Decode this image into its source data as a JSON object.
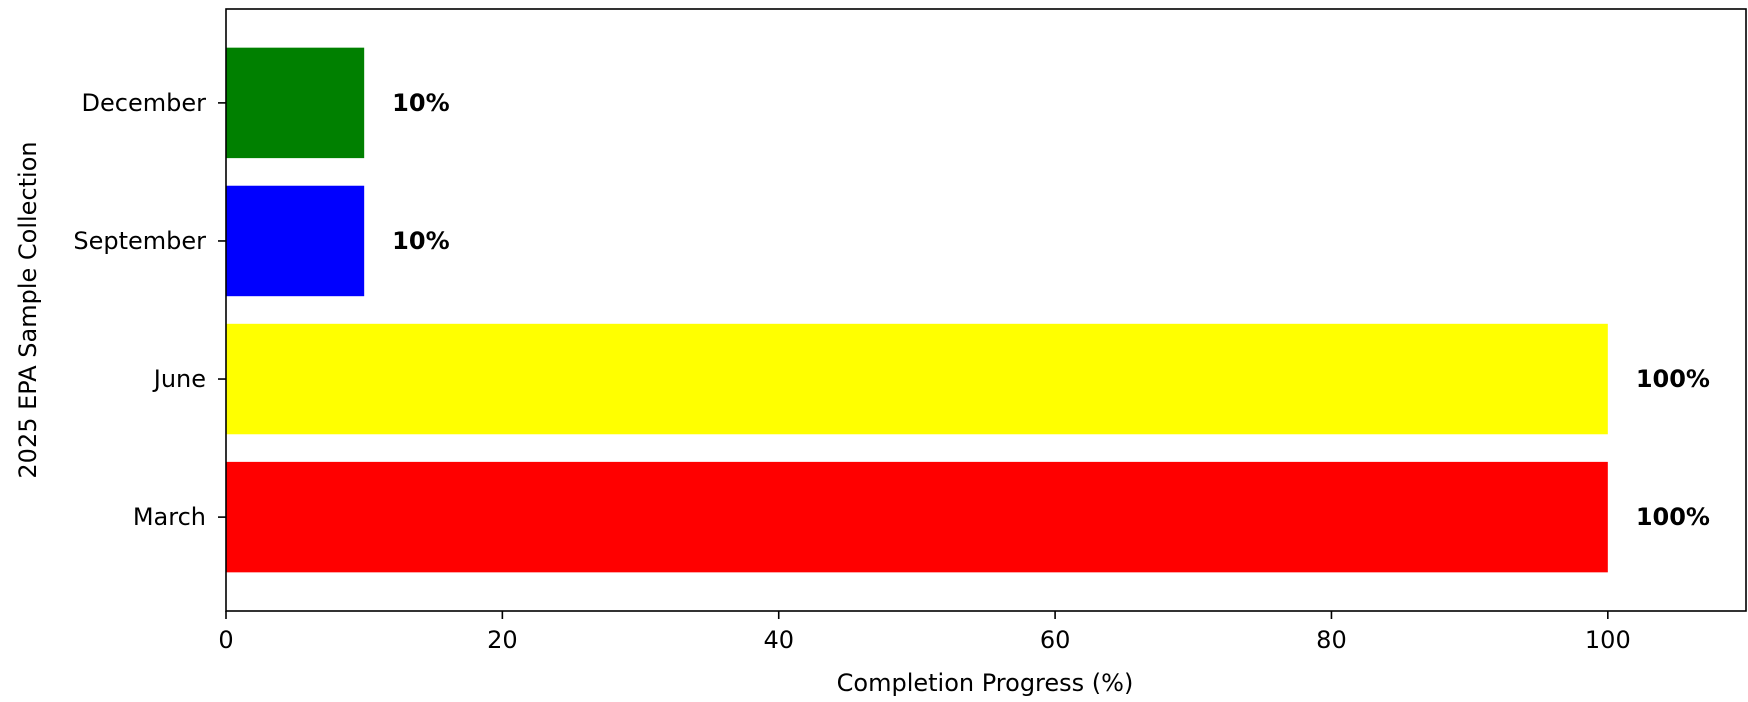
{
  "chart_data": {
    "type": "bar",
    "orientation": "horizontal",
    "title": "",
    "xlabel": "Completion Progress (%)",
    "ylabel": "2025 EPA Sample Collection",
    "categories": [
      "March",
      "June",
      "September",
      "December"
    ],
    "values": [
      100,
      100,
      10,
      10
    ],
    "value_labels": [
      "100%",
      "100%",
      "10%",
      "10%"
    ],
    "colors": [
      "#ff0000",
      "#ffff00",
      "#0000ff",
      "#008000"
    ],
    "xlim": [
      0,
      110
    ],
    "xticks": [
      0,
      20,
      40,
      60,
      80,
      100
    ],
    "xtick_labels": [
      "0",
      "20",
      "40",
      "60",
      "80",
      "100"
    ],
    "grid": false,
    "legend": "none"
  }
}
